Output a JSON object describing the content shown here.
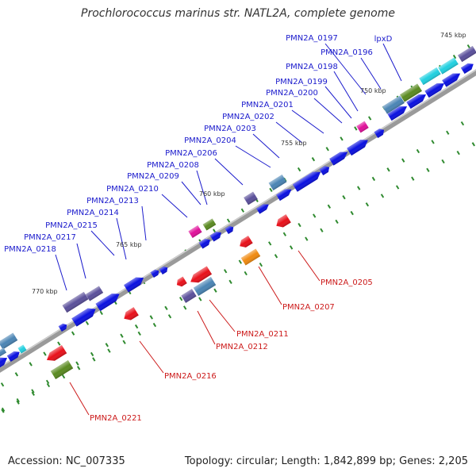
{
  "title": "Prochlorococcus marinus str. NATL2A, complete genome",
  "footer": {
    "accession": "Accession: NC_007335",
    "topology": "Topology: circular; Length: 1,842,899 bp; Genes: 2,205"
  },
  "axis_labels": [
    "745 kbp",
    "750 kbp",
    "755 kbp",
    "760 kbp",
    "765 kbp",
    "770 kbp"
  ],
  "forward_gene_labels": [
    "PMN2A_0197",
    "lpxD",
    "PMN2A_0196",
    "PMN2A_0198",
    "PMN2A_0199",
    "PMN2A_0200",
    "PMN2A_0201",
    "PMN2A_0202",
    "PMN2A_0203",
    "PMN2A_0204",
    "PMN2A_0206",
    "PMN2A_0208",
    "PMN2A_0209",
    "PMN2A_0210",
    "PMN2A_0213",
    "PMN2A_0214",
    "PMN2A_0215",
    "PMN2A_0217",
    "PMN2A_0218"
  ],
  "reverse_gene_labels": [
    "PMN2A_0205",
    "PMN2A_0207",
    "PMN2A_0211",
    "PMN2A_0212",
    "PMN2A_0216",
    "PMN2A_0221"
  ],
  "colors": {
    "backbone": "#808080",
    "forward_label": "#1a1acc",
    "reverse_label": "#cc1a1a",
    "cds_forward": "#0a10e0",
    "cds_reverse": "#e8101a",
    "tick": "#2f8a2f",
    "cog_blue": "#4a84b4",
    "cog_purple": "#5a4f9a",
    "cog_magenta": "#e0109a",
    "cog_cyan": "#20d0e0",
    "cog_olive": "#5a8a20",
    "cog_orange": "#f08a10"
  }
}
